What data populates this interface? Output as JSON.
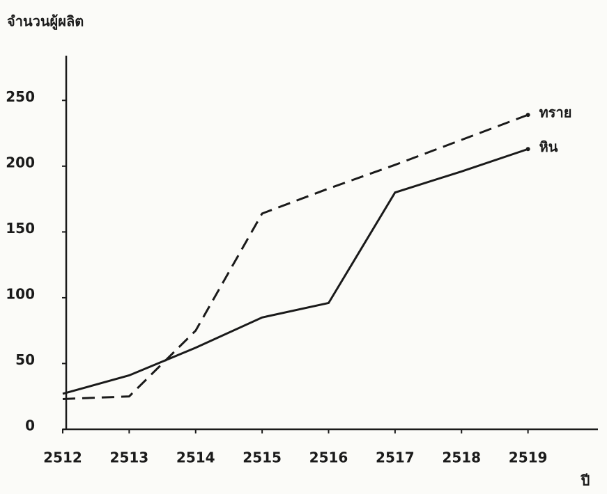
{
  "chart_data": {
    "type": "line",
    "y_label": "จำนวนผู้ผลิต",
    "x_label": "ปี",
    "x": [
      2512,
      2513,
      2514,
      2515,
      2516,
      2517,
      2518,
      2519
    ],
    "series": [
      {
        "name": "ทราย",
        "color": "#1a1a1a",
        "line_style": "dashed",
        "values": [
          23,
          25,
          75,
          164,
          183,
          201,
          220,
          239
        ]
      },
      {
        "name": "หิน",
        "color": "#1a1a1a",
        "line_style": "solid",
        "values": [
          27,
          41,
          62,
          85,
          96,
          180,
          196,
          213
        ]
      }
    ],
    "xlim": [
      2512,
      2520
    ],
    "xticks": [
      2512,
      2513,
      2514,
      2515,
      2516,
      2517,
      2518,
      2519
    ],
    "ylim": [
      0,
      284
    ],
    "yticks": [
      0,
      50,
      100,
      150,
      200,
      250
    ],
    "grid": false
  }
}
